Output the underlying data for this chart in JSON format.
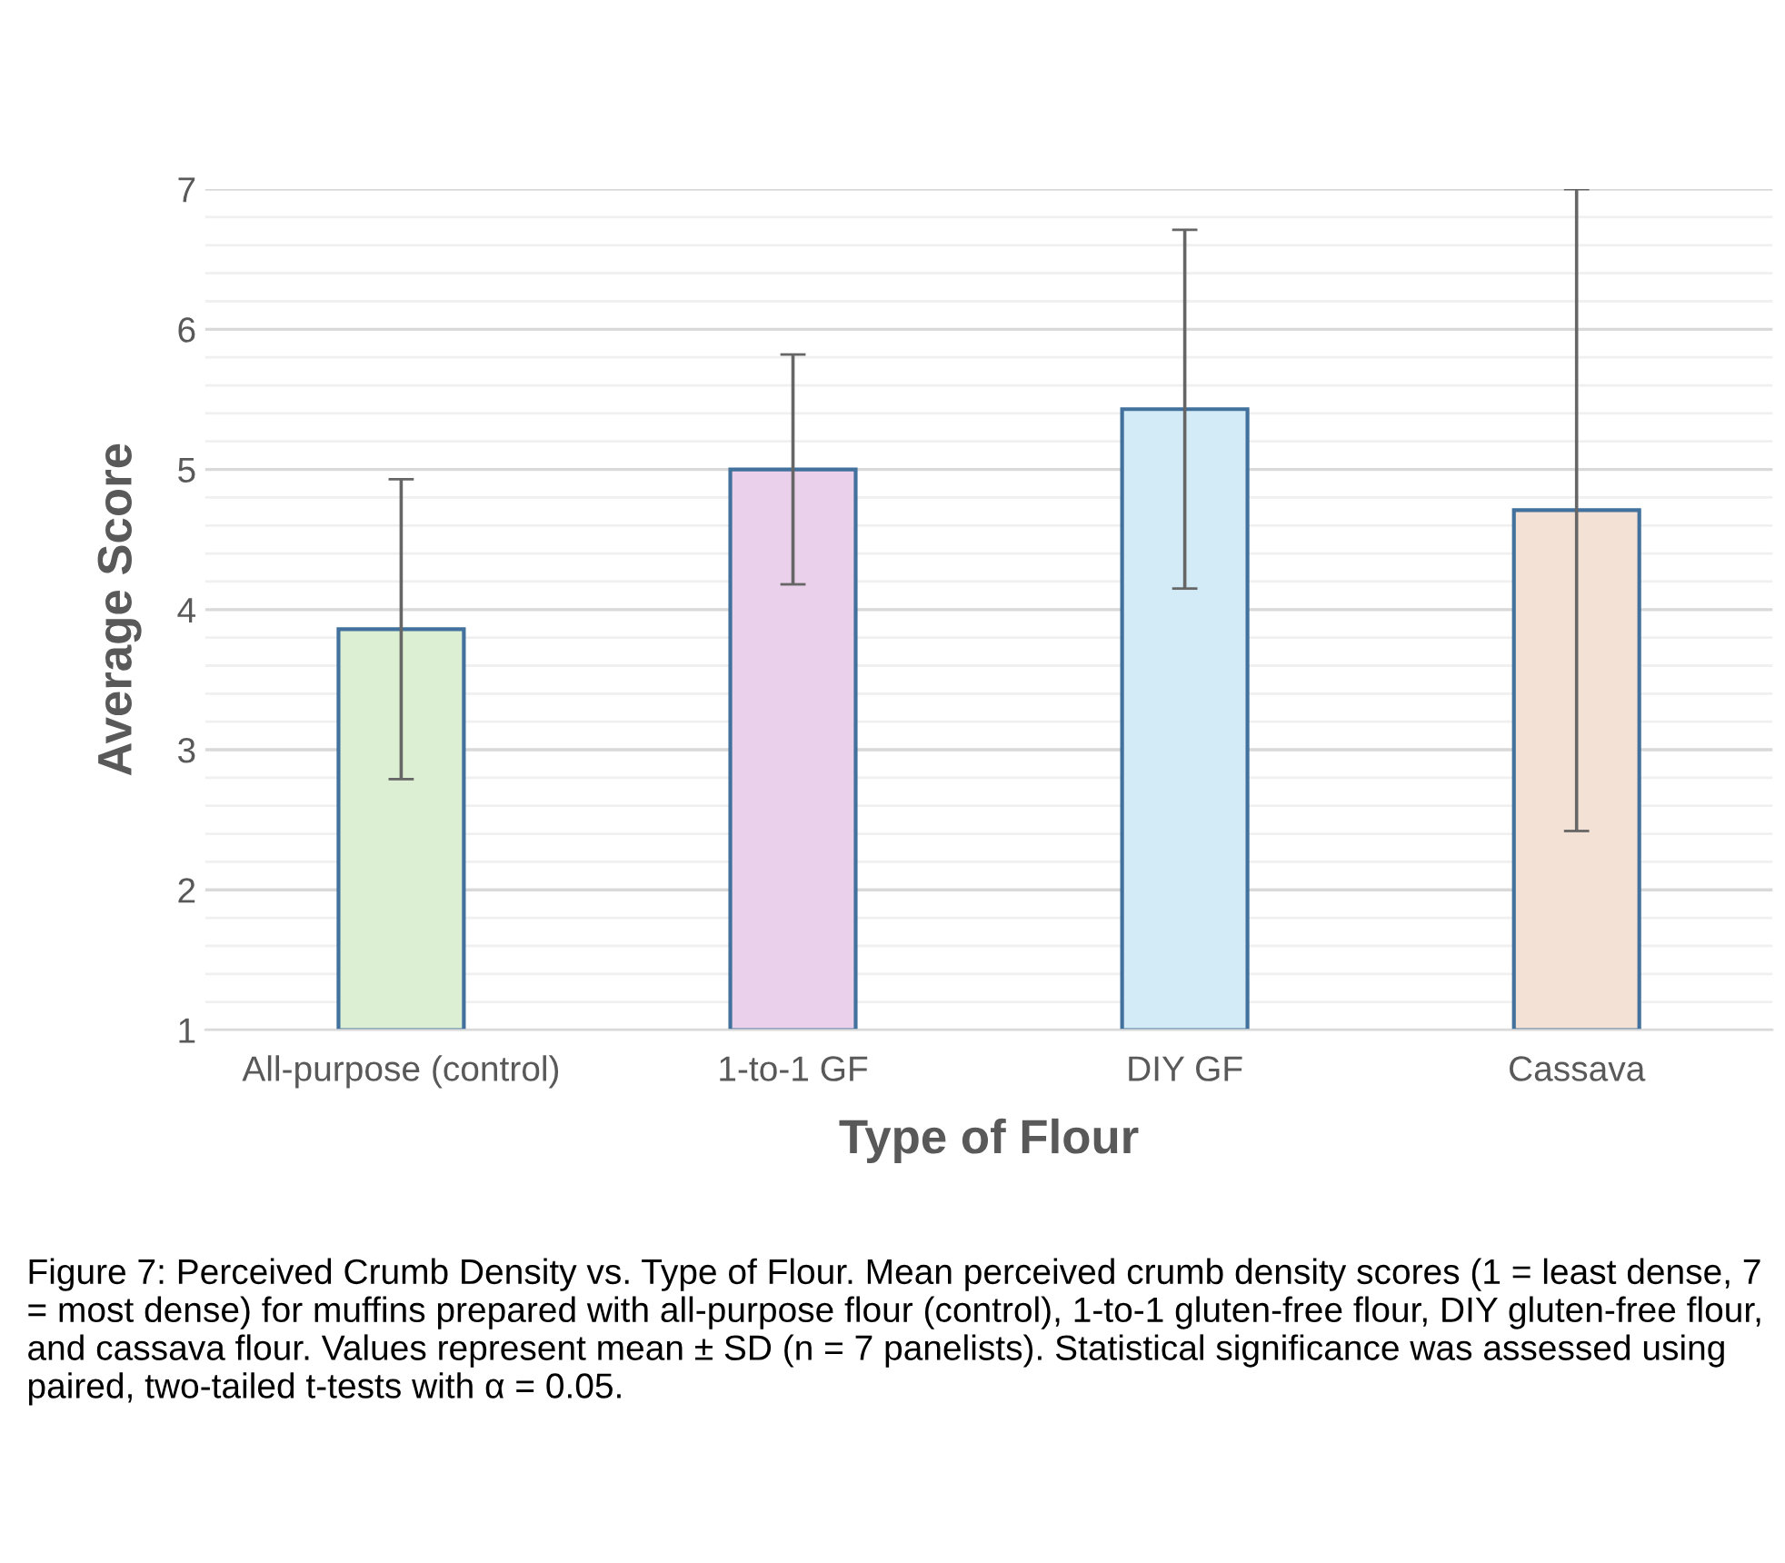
{
  "chart_data": {
    "type": "bar",
    "categories": [
      "All-purpose (control)",
      "1-to-1 GF",
      "DIY GF",
      "Cassava"
    ],
    "values": [
      3.86,
      5.0,
      5.43,
      4.71
    ],
    "errors": [
      1.07,
      0.82,
      1.28,
      2.29
    ],
    "colors": [
      "#ddefd3",
      "#ead0ea",
      "#d2ebf7",
      "#f4e1d5"
    ],
    "xlabel": "Type of Flour",
    "ylabel": "Average Score",
    "ylim": [
      1,
      7
    ],
    "yticks": [
      1,
      {
        "value": 1.2,
        "label": null
      },
      {
        "value": 1.4,
        "label": null
      },
      {
        "value": 1.6,
        "label": null
      },
      {
        "value": 1.8,
        "label": null
      },
      2,
      {
        "value": 2.2,
        "label": null
      },
      {
        "value": 2.4,
        "label": null
      },
      {
        "value": 2.6,
        "label": null
      },
      {
        "value": 2.8,
        "label": null
      },
      3,
      {
        "value": 3.2,
        "label": null
      },
      {
        "value": 3.4,
        "label": null
      },
      {
        "value": 3.6,
        "label": null
      },
      {
        "value": 3.8,
        "label": null
      },
      4,
      {
        "value": 4.2,
        "label": null
      },
      {
        "value": 4.4,
        "label": null
      },
      {
        "value": 4.6,
        "label": null
      },
      {
        "value": 4.8,
        "label": null
      },
      5,
      {
        "value": 5.2,
        "label": null
      },
      {
        "value": 5.4,
        "label": null
      },
      {
        "value": 5.6,
        "label": null
      },
      {
        "value": 5.8,
        "label": null
      },
      6,
      {
        "value": 6.2,
        "label": null
      },
      {
        "value": 6.4,
        "label": null
      },
      {
        "value": 6.6,
        "label": null
      },
      {
        "value": 6.8,
        "label": null
      },
      7
    ],
    "grid": "y",
    "annotations": [
      "Figure 7: Perceived Crumb Density vs. Type of Flour. Mean perceived crumb density scores (1 = least dense, 7 = most dense) for muffins prepared with all-purpose flour (control), 1-to-1 gluten-free flour, DIY gluten-free flour, and cassava flour. Values represent mean ± SD (n = 7 panelists). Statistical significance was assessed using paired, two-tailed t-tests with α = 0.05."
    ]
  }
}
